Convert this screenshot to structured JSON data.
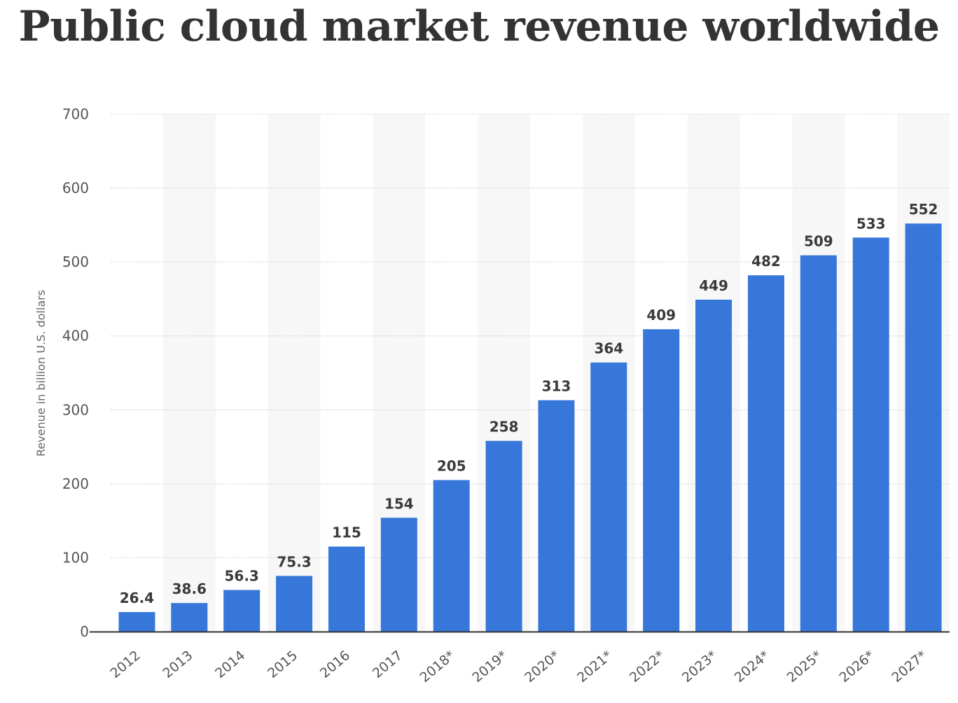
{
  "chart_data": {
    "type": "bar",
    "title": "Public cloud market revenue worldwide",
    "ylabel": "Revenue in billion U.S. dollars",
    "xlabel": "",
    "ylim": [
      0,
      700
    ],
    "yticks": [
      "0",
      "100",
      "200",
      "300",
      "400",
      "500",
      "600",
      "700"
    ],
    "categories": [
      "2012",
      "2013",
      "2014",
      "2015",
      "2016",
      "2017",
      "2018*",
      "2019*",
      "2020*",
      "2021*",
      "2022*",
      "2023*",
      "2024*",
      "2025*",
      "2026*",
      "2027*"
    ],
    "values": [
      26.4,
      38.6,
      56.3,
      75.3,
      115,
      154,
      205,
      258,
      313,
      364,
      409,
      449,
      482,
      509,
      533,
      552
    ],
    "data_labels": [
      "26.4",
      "38.6",
      "56.3",
      "75.3",
      "115",
      "154",
      "205",
      "258",
      "313",
      "364",
      "409",
      "449",
      "482",
      "509",
      "533",
      "552"
    ],
    "grid": true,
    "legend": "none",
    "colors": {
      "bar": "#3777d9",
      "band": "#f7f7f7",
      "grid": "#cfcfcf",
      "axis": "#333333"
    }
  }
}
